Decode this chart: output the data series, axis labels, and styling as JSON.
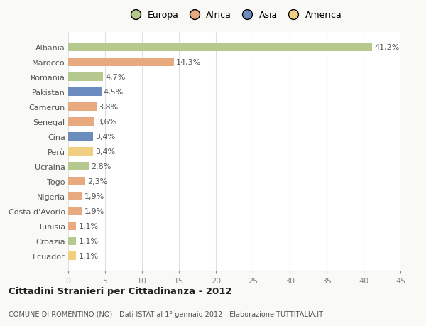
{
  "categories": [
    "Albania",
    "Marocco",
    "Romania",
    "Pakistan",
    "Camerun",
    "Senegal",
    "Cina",
    "Perù",
    "Ucraina",
    "Togo",
    "Nigeria",
    "Costa d'Avorio",
    "Tunisia",
    "Croazia",
    "Ecuador"
  ],
  "values": [
    41.2,
    14.3,
    4.7,
    4.5,
    3.8,
    3.6,
    3.4,
    3.4,
    2.8,
    2.3,
    1.9,
    1.9,
    1.1,
    1.1,
    1.1
  ],
  "labels": [
    "41,2%",
    "14,3%",
    "4,7%",
    "4,5%",
    "3,8%",
    "3,6%",
    "3,4%",
    "3,4%",
    "2,8%",
    "2,3%",
    "1,9%",
    "1,9%",
    "1,1%",
    "1,1%",
    "1,1%"
  ],
  "bar_colors": [
    "#b5c98e",
    "#e8a97e",
    "#b5c98e",
    "#6b8cbf",
    "#e8a97e",
    "#e8a97e",
    "#6b8cbf",
    "#f0d080",
    "#b5c98e",
    "#e8a97e",
    "#e8a97e",
    "#e8a97e",
    "#e8a97e",
    "#b5c98e",
    "#f0d080"
  ],
  "legend_labels": [
    "Europa",
    "Africa",
    "Asia",
    "America"
  ],
  "legend_colors": [
    "#b5c98e",
    "#e8a97e",
    "#6b8cbf",
    "#f0d080"
  ],
  "xlim": [
    0,
    45
  ],
  "xticks": [
    0,
    5,
    10,
    15,
    20,
    25,
    30,
    35,
    40,
    45
  ],
  "title": "Cittadini Stranieri per Cittadinanza - 2012",
  "subtitle": "COMUNE DI ROMENTINO (NO) - Dati ISTAT al 1° gennaio 2012 - Elaborazione TUTTITALIA.IT",
  "background_color": "#f9f9f6",
  "plot_bg_color": "#ffffff",
  "grid_color": "#e0e0e0",
  "bar_height": 0.55,
  "label_fontsize": 8,
  "tick_fontsize": 8,
  "legend_fontsize": 9
}
